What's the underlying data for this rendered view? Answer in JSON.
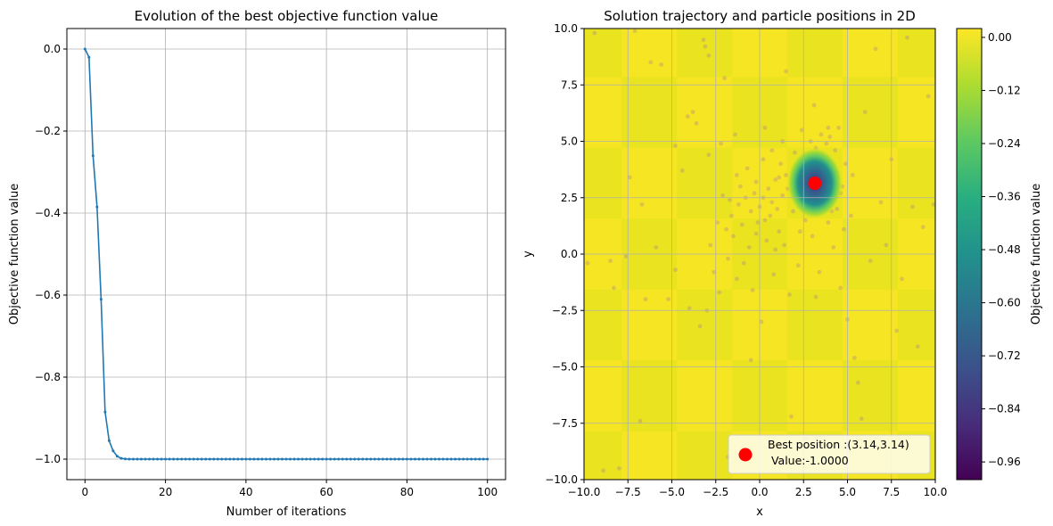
{
  "chart_data": [
    {
      "type": "line",
      "title": "Evolution of the best objective function value",
      "xlabel": "Number of iterations",
      "ylabel": "Objective function value",
      "xlim": [
        -4.5,
        104.5
      ],
      "ylim": [
        -1.05,
        0.05
      ],
      "xticks": [
        0,
        20,
        40,
        60,
        80,
        100
      ],
      "xtick_labels": [
        "0",
        "20",
        "40",
        "60",
        "80",
        "100"
      ],
      "yticks": [
        0.0,
        -0.2,
        -0.4,
        -0.6,
        -0.8,
        -1.0
      ],
      "ytick_labels": [
        "0.0",
        "−0.2",
        "−0.4",
        "−0.6",
        "−0.8",
        "−1.0"
      ],
      "grid": true,
      "line_color": "#1f77b4",
      "x_range": [
        0,
        100
      ],
      "values_head": [
        0.0,
        -0.02,
        -0.26,
        -0.385,
        -0.61,
        -0.885,
        -0.955,
        -0.98,
        -0.993,
        -0.998,
        -0.9995
      ],
      "values_tail": -1.0
    },
    {
      "type": "heatmap",
      "title": "Solution trajectory and particle positions in 2D",
      "xlabel": "x",
      "ylabel": "y",
      "xlim": [
        -10,
        10
      ],
      "ylim": [
        -10,
        10
      ],
      "xticks": [
        -10,
        -7.5,
        -5,
        -2.5,
        0,
        2.5,
        5,
        7.5,
        10
      ],
      "xtick_labels": [
        "−10.0",
        "−7.5",
        "−5.0",
        "−2.5",
        "0.0",
        "2.5",
        "5.0",
        "7.5",
        "10.0"
      ],
      "yticks": [
        10,
        7.5,
        5,
        2.5,
        0,
        -2.5,
        -5,
        -7.5,
        -10
      ],
      "ytick_labels": [
        "10.0",
        "7.5",
        "5.0",
        "2.5",
        "0.0",
        "−2.5",
        "−5.0",
        "−7.5",
        "−10.0"
      ],
      "grid": true,
      "surface": "easom",
      "minimum": {
        "x": 3.14,
        "y": 3.14,
        "value": -1.0
      },
      "best_marker_color": "#ff0000",
      "particle_color": "#b08a8a",
      "legend": {
        "placement": "lower-right",
        "line1": "Best position :(3.14,3.14)",
        "line2": " Value:-1.0000"
      },
      "colorbar": {
        "label": "Objective function value",
        "range": [
          -1.0,
          0.02
        ],
        "ticks": [
          0.0,
          -0.12,
          -0.24,
          -0.36,
          -0.48,
          -0.6,
          -0.72,
          -0.84,
          -0.96
        ],
        "tick_labels": [
          "0.00",
          "−0.12",
          "−0.24",
          "−0.36",
          "−0.48",
          "−0.60",
          "−0.72",
          "−0.84",
          "−0.96"
        ],
        "colormap": "viridis"
      },
      "particles": [
        [
          -9.8,
          -0.4
        ],
        [
          -9.4,
          9.8
        ],
        [
          -8.9,
          -9.6
        ],
        [
          -8.5,
          -0.3
        ],
        [
          -8.3,
          -1.5
        ],
        [
          -8.0,
          -9.5
        ],
        [
          -7.6,
          -0.1
        ],
        [
          -7.4,
          3.4
        ],
        [
          -7.1,
          9.9
        ],
        [
          -6.8,
          -7.4
        ],
        [
          -6.5,
          -2.0
        ],
        [
          -6.2,
          8.5
        ],
        [
          -5.9,
          0.3
        ],
        [
          -5.6,
          8.4
        ],
        [
          -5.2,
          -2.0
        ],
        [
          -4.8,
          -0.7
        ],
        [
          -4.4,
          3.7
        ],
        [
          -4.1,
          6.1
        ],
        [
          -4.0,
          -2.4
        ],
        [
          -3.8,
          6.3
        ],
        [
          -3.6,
          5.8
        ],
        [
          -3.4,
          -3.2
        ],
        [
          -3.2,
          9.5
        ],
        [
          -3.1,
          9.2
        ],
        [
          -3.0,
          -2.5
        ],
        [
          -2.9,
          8.8
        ],
        [
          -2.8,
          0.4
        ],
        [
          -2.6,
          -0.8
        ],
        [
          -2.4,
          1.4
        ],
        [
          -2.3,
          -1.7
        ],
        [
          -2.1,
          2.6
        ],
        [
          -2.0,
          7.8
        ],
        [
          -1.9,
          1.1
        ],
        [
          -1.8,
          -0.2
        ],
        [
          -1.7,
          2.4
        ],
        [
          -1.6,
          1.7
        ],
        [
          -1.5,
          0.8
        ],
        [
          -1.4,
          5.3
        ],
        [
          -1.3,
          -1.1
        ],
        [
          -1.2,
          2.2
        ],
        [
          -1.1,
          3.0
        ],
        [
          -1.0,
          1.3
        ],
        [
          -0.9,
          -0.4
        ],
        [
          -0.8,
          2.5
        ],
        [
          -0.7,
          3.8
        ],
        [
          -0.6,
          0.3
        ],
        [
          -0.5,
          1.9
        ],
        [
          -0.4,
          -1.6
        ],
        [
          -0.3,
          2.7
        ],
        [
          -0.2,
          0.9
        ],
        [
          -0.1,
          1.4
        ],
        [
          0.0,
          2.1
        ],
        [
          0.1,
          -3.0
        ],
        [
          0.2,
          2.5
        ],
        [
          0.3,
          1.5
        ],
        [
          0.4,
          0.6
        ],
        [
          0.5,
          2.9
        ],
        [
          0.6,
          1.7
        ],
        [
          0.7,
          2.3
        ],
        [
          0.8,
          -0.9
        ],
        [
          0.9,
          3.3
        ],
        [
          1.0,
          2.0
        ],
        [
          1.1,
          1.0
        ],
        [
          1.2,
          4.0
        ],
        [
          1.3,
          2.6
        ],
        [
          1.4,
          0.4
        ],
        [
          1.5,
          3.5
        ],
        [
          1.6,
          2.9
        ],
        [
          1.7,
          -1.8
        ],
        [
          1.8,
          3.1
        ],
        [
          1.9,
          1.9
        ],
        [
          2.0,
          4.5
        ],
        [
          2.1,
          2.7
        ],
        [
          2.2,
          -0.5
        ],
        [
          2.3,
          3.6
        ],
        [
          2.4,
          2.2
        ],
        [
          2.5,
          4.1
        ],
        [
          2.6,
          1.5
        ],
        [
          2.7,
          4.4
        ],
        [
          2.8,
          2.8
        ],
        [
          2.9,
          5.0
        ],
        [
          3.0,
          0.8
        ],
        [
          3.1,
          6.6
        ],
        [
          3.2,
          4.7
        ],
        [
          3.3,
          1.9
        ],
        [
          3.4,
          -0.8
        ],
        [
          3.5,
          5.3
        ],
        [
          3.6,
          4.2
        ],
        [
          3.7,
          2.4
        ],
        [
          3.8,
          4.9
        ],
        [
          3.9,
          1.4
        ],
        [
          4.0,
          5.2
        ],
        [
          4.1,
          3.9
        ],
        [
          4.2,
          0.3
        ],
        [
          4.3,
          4.6
        ],
        [
          4.4,
          2.0
        ],
        [
          4.5,
          5.6
        ],
        [
          4.6,
          -1.5
        ],
        [
          4.7,
          3.0
        ],
        [
          4.8,
          1.1
        ],
        [
          4.9,
          4.0
        ],
        [
          5.0,
          -2.9
        ],
        [
          5.2,
          1.7
        ],
        [
          5.4,
          -4.6
        ],
        [
          5.6,
          -5.7
        ],
        [
          5.8,
          -7.3
        ],
        [
          6.0,
          6.3
        ],
        [
          6.3,
          -0.3
        ],
        [
          6.6,
          9.1
        ],
        [
          6.9,
          2.3
        ],
        [
          7.2,
          0.4
        ],
        [
          7.5,
          4.2
        ],
        [
          7.8,
          -3.4
        ],
        [
          8.1,
          -1.1
        ],
        [
          8.4,
          9.6
        ],
        [
          8.7,
          2.1
        ],
        [
          9.0,
          -4.1
        ],
        [
          9.3,
          1.2
        ],
        [
          9.6,
          7.0
        ],
        [
          9.9,
          2.2
        ],
        [
          -0.5,
          -4.7
        ],
        [
          1.8,
          -7.2
        ],
        [
          2.6,
          -8.2
        ],
        [
          -1.8,
          -9.0
        ],
        [
          -4.8,
          4.8
        ],
        [
          -6.7,
          2.2
        ],
        [
          0.3,
          5.6
        ],
        [
          1.5,
          8.1
        ],
        [
          -2.9,
          4.4
        ],
        [
          3.2,
          -1.9
        ],
        [
          0.7,
          4.6
        ],
        [
          -1.3,
          3.5
        ],
        [
          1.1,
          3.4
        ],
        [
          2.3,
          1.0
        ],
        [
          -0.2,
          3.2
        ],
        [
          0.9,
          0.2
        ],
        [
          4.6,
          2.7
        ],
        [
          5.3,
          3.5
        ],
        [
          4.1,
          1.9
        ],
        [
          3.9,
          5.6
        ],
        [
          2.4,
          5.5
        ],
        [
          1.3,
          5.0
        ],
        [
          0.2,
          4.2
        ],
        [
          -2.2,
          4.9
        ]
      ]
    }
  ]
}
